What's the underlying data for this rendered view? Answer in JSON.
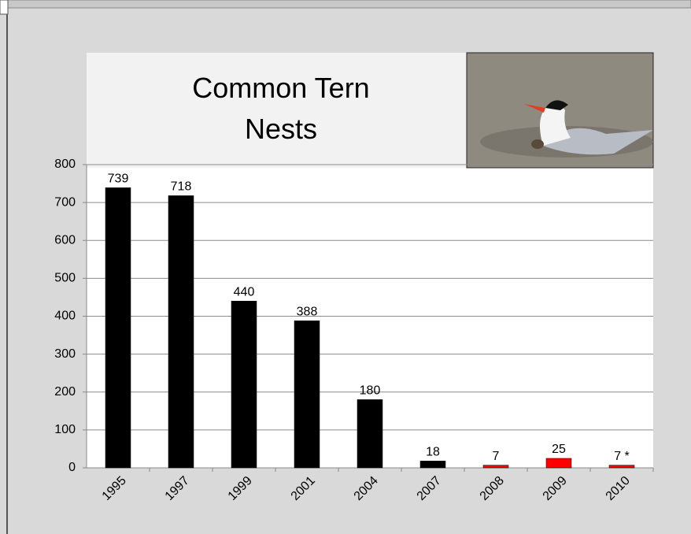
{
  "chart_data": {
    "type": "bar",
    "title": "Common Tern Nests",
    "categories": [
      "1995",
      "1997",
      "1999",
      "2001",
      "2004",
      "2007",
      "2008",
      "2009",
      "2010"
    ],
    "values": [
      739,
      718,
      440,
      388,
      180,
      18,
      7,
      25,
      7
    ],
    "value_labels": [
      "739",
      "718",
      "440",
      "388",
      "180",
      "18",
      "7",
      "25",
      "7 *"
    ],
    "colors": [
      "#000000",
      "#000000",
      "#000000",
      "#000000",
      "#000000",
      "#000000",
      "#ff0000",
      "#ff0000",
      "#ff0000"
    ],
    "ylim": [
      0,
      800
    ],
    "yticks": [
      0,
      100,
      200,
      300,
      400,
      500,
      600,
      700,
      800
    ],
    "grid": true
  }
}
